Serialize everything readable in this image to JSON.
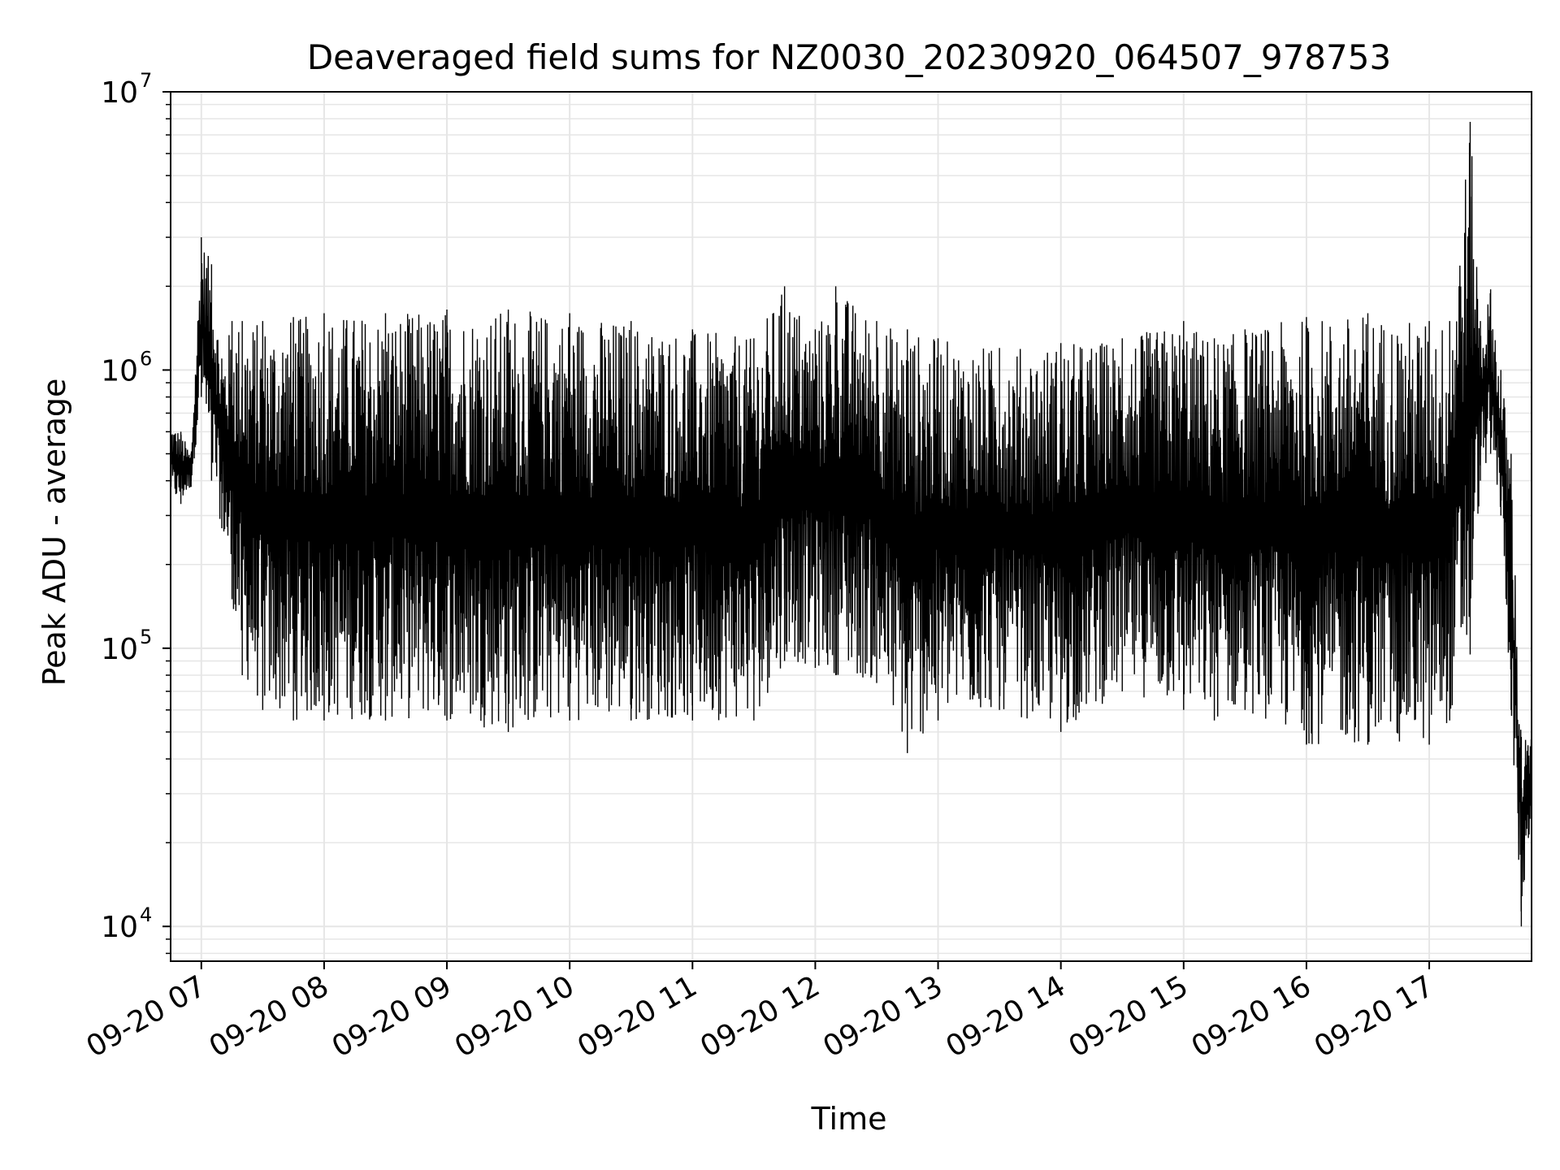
{
  "chart_data": {
    "type": "line",
    "title": "Deaveraged field sums for NZ0030_20230920_064507_978753",
    "xlabel": "Time",
    "ylabel": "Peak ADU - average",
    "yscale": "log",
    "xlim": [
      "2023-09-20 06:45",
      "2023-09-20 17:50"
    ],
    "ylim": [
      7500,
      10000000
    ],
    "grid": true,
    "grid_color": "#e6e6e6",
    "line_color": "#000000",
    "x_ticks": [
      {
        "value": "2023-09-20 07:00",
        "label": "09-20 07"
      },
      {
        "value": "2023-09-20 08:00",
        "label": "09-20 08"
      },
      {
        "value": "2023-09-20 09:00",
        "label": "09-20 09"
      },
      {
        "value": "2023-09-20 10:00",
        "label": "09-20 10"
      },
      {
        "value": "2023-09-20 11:00",
        "label": "09-20 11"
      },
      {
        "value": "2023-09-20 12:00",
        "label": "09-20 12"
      },
      {
        "value": "2023-09-20 13:00",
        "label": "09-20 13"
      },
      {
        "value": "2023-09-20 14:00",
        "label": "09-20 14"
      },
      {
        "value": "2023-09-20 15:00",
        "label": "09-20 15"
      },
      {
        "value": "2023-09-20 16:00",
        "label": "09-20 16"
      },
      {
        "value": "2023-09-20 17:00",
        "label": "09-20 17"
      }
    ],
    "y_ticks": [
      {
        "value": 10000,
        "base": "10",
        "exp": "4"
      },
      {
        "value": 100000,
        "base": "10",
        "exp": "5"
      },
      {
        "value": 1000000,
        "base": "10",
        "exp": "6"
      },
      {
        "value": 10000000,
        "base": "10",
        "exp": "7"
      }
    ],
    "series": [
      {
        "x": [
          "2023-09-20 06:45",
          "2023-09-20 06:50",
          "2023-09-20 06:55",
          "2023-09-20 07:00",
          "2023-09-20 07:05",
          "2023-09-20 07:10",
          "2023-09-20 07:15",
          "2023-09-20 07:20",
          "2023-09-20 07:30",
          "2023-09-20 07:45",
          "2023-09-20 08:00",
          "2023-09-20 08:30",
          "2023-09-20 09:00",
          "2023-09-20 09:30",
          "2023-09-20 10:00",
          "2023-09-20 10:30",
          "2023-09-20 11:00",
          "2023-09-20 11:30",
          "2023-09-20 11:45",
          "2023-09-20 12:00",
          "2023-09-20 12:10",
          "2023-09-20 12:30",
          "2023-09-20 12:45",
          "2023-09-20 13:00",
          "2023-09-20 13:30",
          "2023-09-20 14:00",
          "2023-09-20 14:30",
          "2023-09-20 15:00",
          "2023-09-20 15:15",
          "2023-09-20 15:30",
          "2023-09-20 16:00",
          "2023-09-20 16:30",
          "2023-09-20 17:00",
          "2023-09-20 17:10",
          "2023-09-20 17:20",
          "2023-09-20 17:25",
          "2023-09-20 17:30",
          "2023-09-20 17:35",
          "2023-09-20 17:40",
          "2023-09-20 17:45",
          "2023-09-20 17:50"
        ],
        "upper": [
          650000,
          600000,
          500000,
          3000000,
          2400000,
          1100000,
          1500000,
          1500000,
          1500000,
          1550000,
          1600000,
          1600000,
          1650000,
          1650000,
          1600000,
          1500000,
          1400000,
          1300000,
          2000000,
          1400000,
          2000000,
          1500000,
          1400000,
          1300000,
          1200000,
          1250000,
          1300000,
          1500000,
          1300000,
          1400000,
          1550000,
          1600000,
          1500000,
          1500000,
          7800000,
          1500000,
          1950000,
          1000000,
          500000,
          48000,
          48000
        ],
        "lower": [
          350000,
          330000,
          380000,
          800000,
          400000,
          270000,
          150000,
          80000,
          60000,
          55000,
          55000,
          55000,
          55000,
          50000,
          55000,
          55000,
          55000,
          55000,
          90000,
          85000,
          80000,
          75000,
          42000,
          55000,
          60000,
          50000,
          70000,
          60000,
          55000,
          60000,
          45000,
          45000,
          45000,
          55000,
          95000,
          400000,
          500000,
          300000,
          60000,
          10000,
          25000
        ]
      }
    ]
  }
}
